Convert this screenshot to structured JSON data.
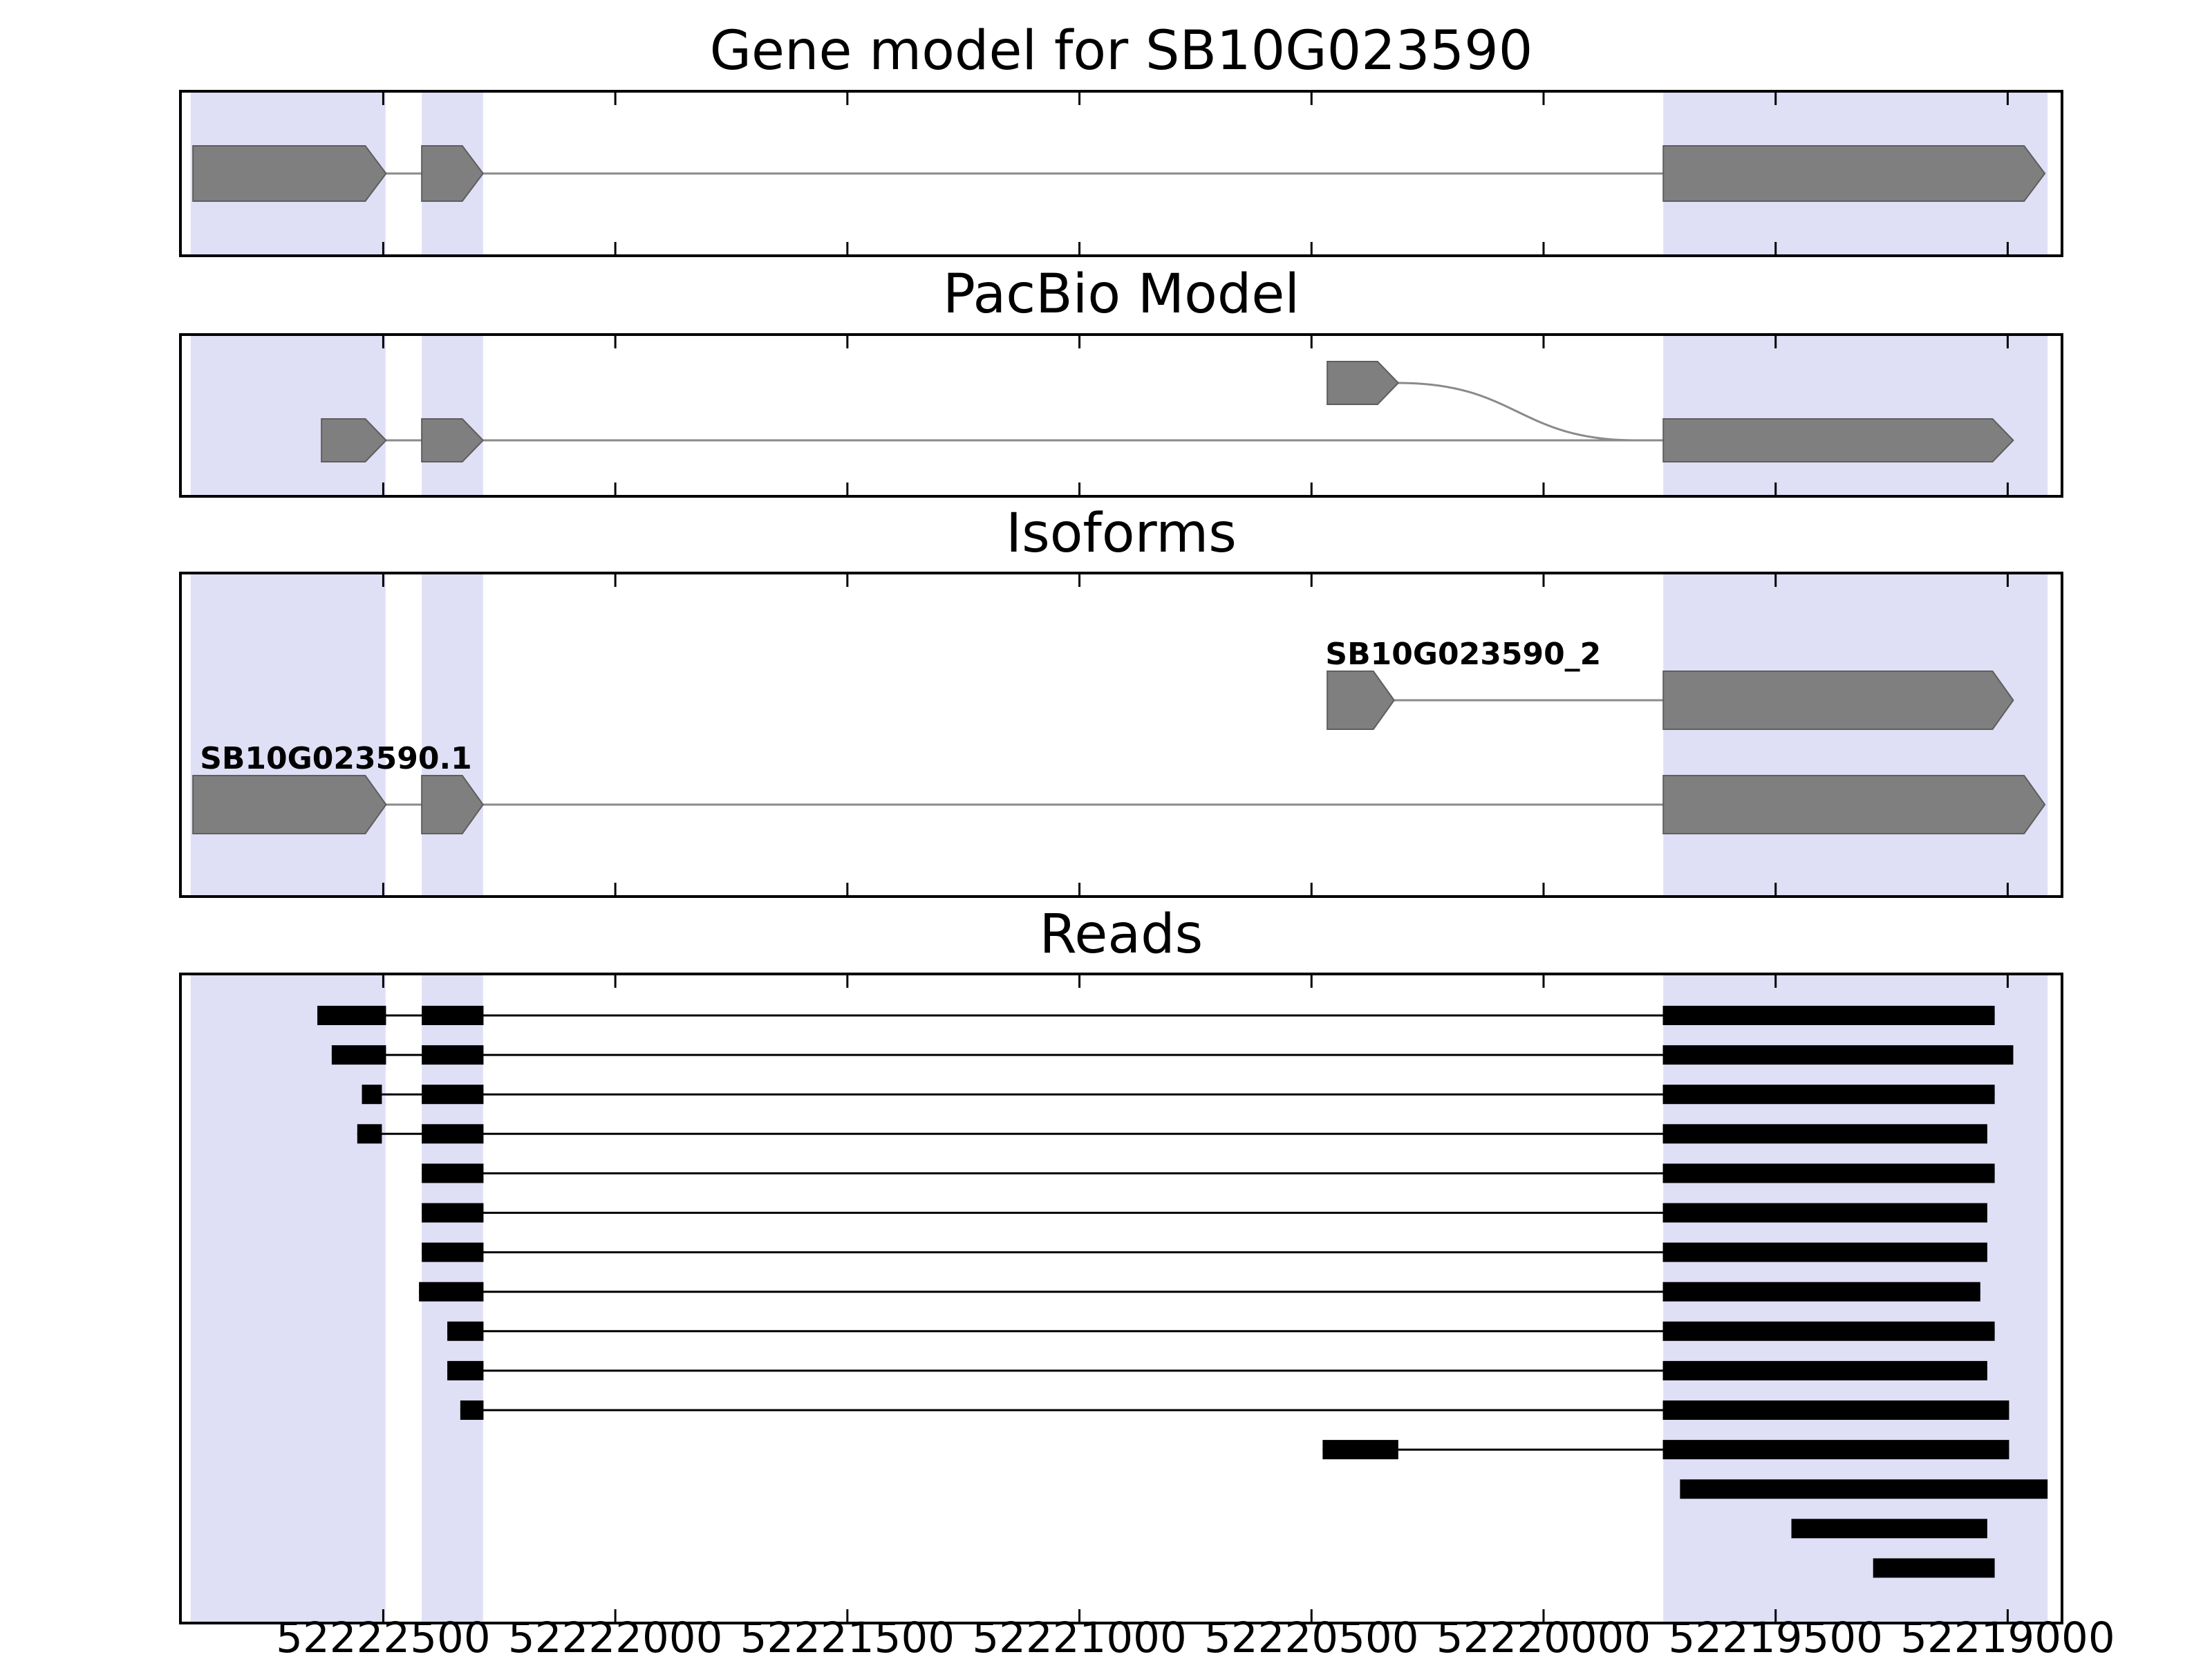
{
  "figure": {
    "background": "#ffffff",
    "highlight_color": "#dfdff6",
    "exon_fill": "#7f7f7f",
    "exon_edge": "#5e5e5e",
    "model_line_color": "#8a8a8a",
    "read_color": "#000000",
    "axis_color": "#000000"
  },
  "chart_data": {
    "type": "genome-browser",
    "axis": {
      "orientation": "reversed",
      "left_bp": 52222940,
      "right_bp": 52218880,
      "ticks": [
        52222500,
        52222000,
        52221500,
        52221000,
        52220500,
        52220000,
        52219500,
        52219000
      ],
      "tick_labels": [
        "52222500",
        "52222000",
        "52221500",
        "52221000",
        "52220500",
        "52220000",
        "52219500",
        "52219000"
      ]
    },
    "highlights": [
      {
        "start": 52222915,
        "end": 52222495
      },
      {
        "start": 52222417,
        "end": 52222285
      },
      {
        "start": 52219742,
        "end": 52218914
      }
    ],
    "panels": [
      {
        "id": "gene-model",
        "title": "Gene model for SB10G023590",
        "rows": [
          {
            "yc": 121,
            "exon_h": 80,
            "line": {
              "start": 52222910,
              "end": 52218920
            },
            "exons": [
              {
                "start": 52222910,
                "end": 52222494,
                "tip": true
              },
              {
                "start": 52222417,
                "end": 52222285,
                "tip": true
              },
              {
                "start": 52219742,
                "end": 52218920,
                "tip": true
              }
            ]
          }
        ]
      },
      {
        "id": "pacbio",
        "title": "PacBio Model",
        "rows": [
          {
            "yc": 155,
            "exon_h": 62,
            "line": {
              "start": 52222633,
              "end": 52218988
            },
            "exons": [
              {
                "start": 52222633,
                "end": 52222494,
                "tip": true
              },
              {
                "start": 52222417,
                "end": 52222285,
                "tip": true
              },
              {
                "start": 52219742,
                "end": 52218988,
                "tip": true
              }
            ]
          },
          {
            "yc": 72,
            "exon_h": 62,
            "curve": {
              "from_bp": 52220313,
              "to_bp": 52219800,
              "to_yc": 155
            },
            "exons": [
              {
                "start": 52220466,
                "end": 52220313,
                "tip": true
              }
            ]
          }
        ]
      },
      {
        "id": "isoforms",
        "title": "Isoforms",
        "rows": [
          {
            "yc": 186,
            "exon_h": 84,
            "label": "SB10G023590_2",
            "label_bp": 52220470,
            "line": {
              "start": 52220466,
              "end": 52218988
            },
            "exons": [
              {
                "start": 52220466,
                "end": 52220322,
                "tip": true
              },
              {
                "start": 52219742,
                "end": 52218988,
                "tip": true
              }
            ]
          },
          {
            "yc": 337,
            "exon_h": 84,
            "label": "SB10G023590.1",
            "label_bp": 52222895,
            "line": {
              "start": 52222910,
              "end": 52218920
            },
            "exons": [
              {
                "start": 52222910,
                "end": 52222494,
                "tip": true
              },
              {
                "start": 52222417,
                "end": 52222285,
                "tip": true
              },
              {
                "start": 52219742,
                "end": 52218920,
                "tip": true
              }
            ]
          }
        ]
      },
      {
        "id": "reads",
        "title": "Reads",
        "reads": [
          {
            "segments": [
              [
                52222642,
                52222494
              ],
              [
                52222417,
                52222284
              ],
              [
                52219743,
                52219028
              ]
            ]
          },
          {
            "segments": [
              [
                52222611,
                52222494
              ],
              [
                52222417,
                52222284
              ],
              [
                52219743,
                52218988
              ]
            ]
          },
          {
            "segments": [
              [
                52222546,
                52222503
              ],
              [
                52222417,
                52222284
              ],
              [
                52219743,
                52219028
              ]
            ]
          },
          {
            "segments": [
              [
                52222556,
                52222503
              ],
              [
                52222417,
                52222284
              ],
              [
                52219743,
                52219044
              ]
            ]
          },
          {
            "segments": [
              [
                52222417,
                52222284
              ],
              [
                52219743,
                52219028
              ]
            ]
          },
          {
            "segments": [
              [
                52222417,
                52222284
              ],
              [
                52219743,
                52219044
              ]
            ]
          },
          {
            "segments": [
              [
                52222417,
                52222284
              ],
              [
                52219743,
                52219044
              ]
            ]
          },
          {
            "segments": [
              [
                52222423,
                52222284
              ],
              [
                52219743,
                52219059
              ]
            ]
          },
          {
            "segments": [
              [
                52222362,
                52222284
              ],
              [
                52219743,
                52219028
              ]
            ]
          },
          {
            "segments": [
              [
                52222362,
                52222284
              ],
              [
                52219743,
                52219044
              ]
            ]
          },
          {
            "segments": [
              [
                52222334,
                52222284
              ],
              [
                52219743,
                52218997
              ]
            ]
          },
          {
            "segments": [
              [
                52220476,
                52220313
              ],
              [
                52219743,
                52218997
              ]
            ]
          },
          {
            "segments": [
              [
                52219706,
                52218914
              ]
            ]
          },
          {
            "segments": [
              [
                52219466,
                52219044
              ]
            ]
          },
          {
            "segments": [
              [
                52219290,
                52219028
              ]
            ]
          }
        ]
      }
    ]
  }
}
